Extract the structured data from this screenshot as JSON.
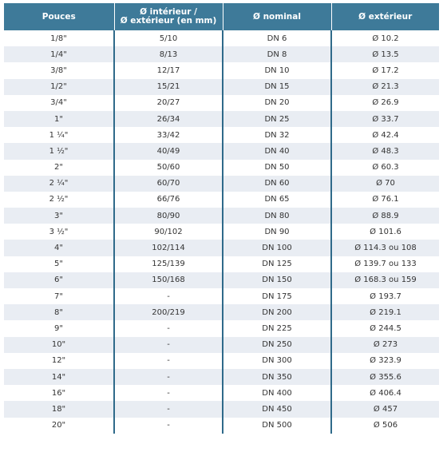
{
  "table": {
    "headers": [
      {
        "lines": [
          "Pouces"
        ]
      },
      {
        "lines": [
          "Ø intérieur /",
          "Ø extérieur (en mm)"
        ]
      },
      {
        "lines": [
          "Ø nominal"
        ]
      },
      {
        "lines": [
          "Ø extérieur"
        ]
      }
    ],
    "rows": [
      [
        "1/8\"",
        "5/10",
        "DN 6",
        "Ø 10.2"
      ],
      [
        "1/4\"",
        "8/13",
        "DN 8",
        "Ø 13.5"
      ],
      [
        "3/8\"",
        "12/17",
        "DN 10",
        "Ø 17.2"
      ],
      [
        "1/2\"",
        "15/21",
        "DN 15",
        "Ø 21.3"
      ],
      [
        "3/4\"",
        "20/27",
        "DN 20",
        "Ø 26.9"
      ],
      [
        "1\"",
        "26/34",
        "DN 25",
        "Ø 33.7"
      ],
      [
        "1 ¼\"",
        "33/42",
        "DN 32",
        "Ø 42.4"
      ],
      [
        "1 ½\"",
        "40/49",
        "DN 40",
        "Ø 48.3"
      ],
      [
        "2\"",
        "50/60",
        "DN 50",
        "Ø 60.3"
      ],
      [
        "2 ¼\"",
        "60/70",
        "DN 60",
        "Ø 70"
      ],
      [
        "2 ½\"",
        "66/76",
        "DN 65",
        "Ø 76.1"
      ],
      [
        "3\"",
        "80/90",
        "DN 80",
        "Ø 88.9"
      ],
      [
        "3 ½\"",
        "90/102",
        "DN 90",
        "Ø 101.6"
      ],
      [
        "4\"",
        "102/114",
        "DN 100",
        "Ø 114.3 ou 108"
      ],
      [
        "5\"",
        "125/139",
        "DN 125",
        "Ø 139.7 ou 133"
      ],
      [
        "6\"",
        "150/168",
        "DN 150",
        "Ø 168.3 ou 159"
      ],
      [
        "7\"",
        "-",
        "DN 175",
        "Ø 193.7"
      ],
      [
        "8\"",
        "200/219",
        "DN 200",
        "Ø 219.1"
      ],
      [
        "9\"",
        "-",
        "DN 225",
        "Ø 244.5"
      ],
      [
        "10\"",
        "-",
        "DN 250",
        "Ø 273"
      ],
      [
        "12\"",
        "-",
        "DN 300",
        "Ø 323.9"
      ],
      [
        "14\"",
        "-",
        "DN 350",
        "Ø 355.6"
      ],
      [
        "16\"",
        "-",
        "DN 400",
        "Ø 406.4"
      ],
      [
        "18\"",
        "-",
        "DN 450",
        "Ø 457"
      ],
      [
        "20\"",
        "-",
        "DN 500",
        "Ø 506"
      ]
    ]
  },
  "colors": {
    "header_bg": "#3e7a99",
    "header_text": "#ffffff",
    "stripe": "#e9edf3",
    "divider": "#2f6a8a",
    "body_text": "#333333"
  }
}
